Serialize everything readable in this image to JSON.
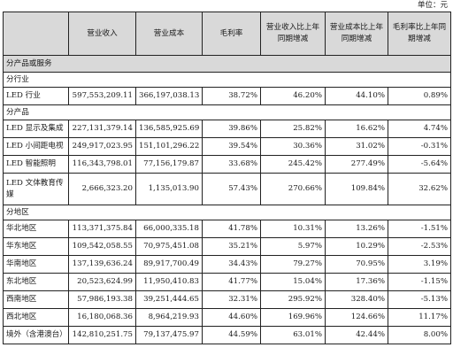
{
  "unit_label": "单位：元",
  "headers": [
    "",
    "营业收入",
    "营业成本",
    "毛利率",
    "营业收入比上年同期增减",
    "营业成本比上年同期增减",
    "毛利率比上年同期增减"
  ],
  "section_title": "分产品或服务",
  "groups": [
    {
      "title": "分行业",
      "rows": [
        [
          "LED 行业",
          "597,553,209.11",
          "366,197,038.13",
          "38.72%",
          "46.20%",
          "44.10%",
          "0.89%"
        ]
      ]
    },
    {
      "title": "分产品",
      "rows": [
        [
          "LED 显示及集成",
          "227,131,379.14",
          "136,585,925.69",
          "39.86%",
          "25.82%",
          "16.62%",
          "4.74%"
        ],
        [
          "LED 小间距电视",
          "249,917,023.95",
          "151,101,296.22",
          "39.54%",
          "30.36%",
          "31.02%",
          "-0.31%"
        ],
        [
          "LED 智能照明",
          "116,343,798.01",
          "77,156,179.87",
          "33.68%",
          "245.42%",
          "277.49%",
          "-5.64%"
        ],
        [
          "LED 文体教育传媒",
          "2,666,323.20",
          "1,135,013.90",
          "57.43%",
          "270.66%",
          "109.84%",
          "32.62%"
        ]
      ]
    },
    {
      "title": "分地区",
      "rows": [
        [
          "华北地区",
          "113,371,375.84",
          "66,000,335.18",
          "41.78%",
          "10.31%",
          "13.26%",
          "-1.51%"
        ],
        [
          "华东地区",
          "109,542,058.55",
          "70,975,451.08",
          "35.21%",
          "5.97%",
          "10.29%",
          "-2.53%"
        ],
        [
          "华南地区",
          "137,139,636.24",
          "89,917,700.49",
          "34.43%",
          "79.27%",
          "70.95%",
          "3.19%"
        ],
        [
          "东北地区",
          "20,523,624.99",
          "11,950,410.83",
          "41.77%",
          "15.04%",
          "17.36%",
          "-1.15%"
        ],
        [
          "西南地区",
          "57,986,193.38",
          "39,251,444.65",
          "32.31%",
          "295.92%",
          "328.40%",
          "-5.13%"
        ],
        [
          "西北地区",
          "16,180,068.36",
          "8,964,219.93",
          "44.60%",
          "169.96%",
          "124.66%",
          "11.17%"
        ],
        [
          "境外（含港澳台）",
          "142,810,251.75",
          "79,137,475.97",
          "44.59%",
          "63.01%",
          "42.44%",
          "8.00%"
        ]
      ]
    }
  ]
}
